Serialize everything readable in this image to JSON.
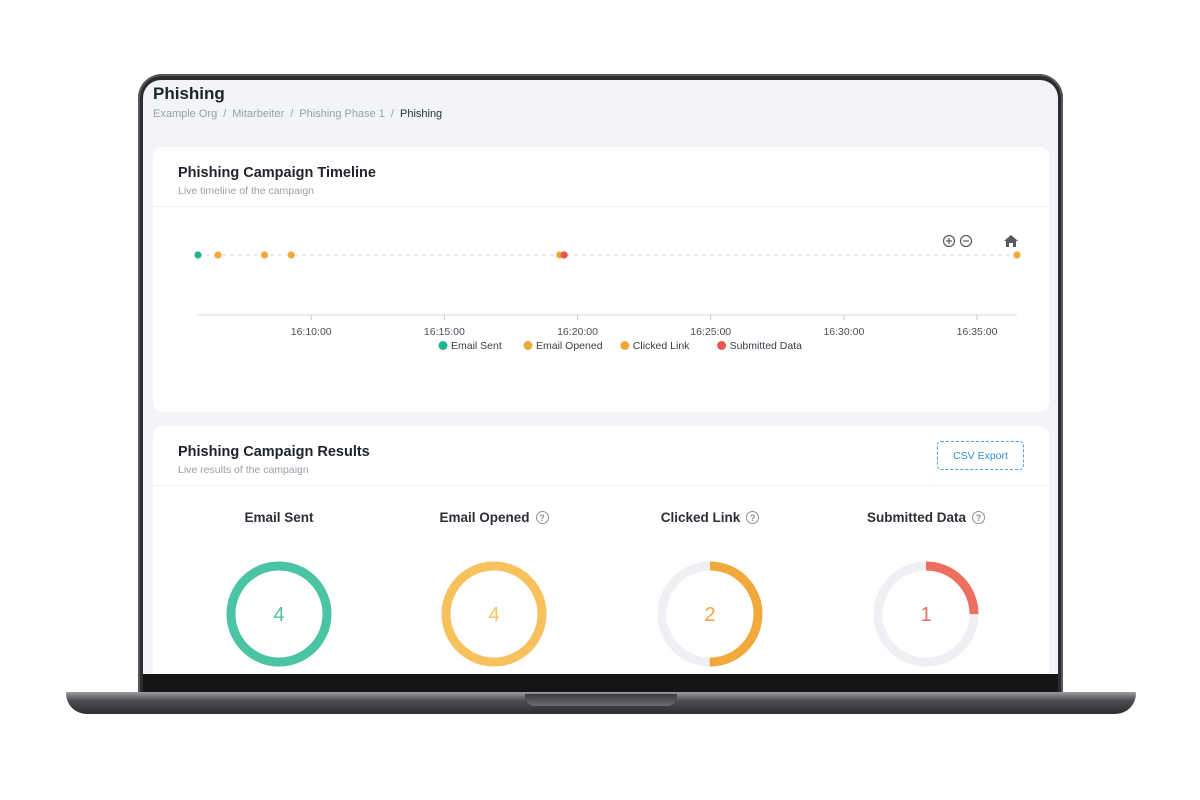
{
  "page": {
    "title": "Phishing",
    "breadcrumb": [
      "Example Org",
      "Mitarbeiter",
      "Phishing Phase 1",
      "Phishing"
    ]
  },
  "timeline": {
    "title": "Phishing Campaign Timeline",
    "subtitle": "Live timeline of the campaign",
    "controls": {
      "zoom_in_icon": "zoom-in-icon",
      "zoom_out_icon": "zoom-out-icon",
      "reset_icon": "home-icon"
    }
  },
  "chart_data": {
    "type": "scatter",
    "title": "",
    "xlabel": "",
    "ylabel": "",
    "x_ticks": [
      "16:10:00",
      "16:15:00",
      "16:20:00",
      "16:25:00",
      "16:30:00",
      "16:35:00"
    ],
    "xlim": [
      "16:05:45",
      "16:36:30"
    ],
    "grid": false,
    "legend_position": "bottom",
    "series": [
      {
        "name": "Email Sent",
        "color": "#1fb58f",
        "x": [
          "16:05:45"
        ]
      },
      {
        "name": "Email Opened",
        "color": "#f2a93b",
        "x": [
          "16:06:30",
          "16:08:15",
          "16:09:15",
          "16:36:30"
        ]
      },
      {
        "name": "Clicked Link",
        "color": "#f2a93b",
        "x": [
          "16:19:20"
        ]
      },
      {
        "name": "Submitted Data",
        "color": "#e8574d",
        "x": [
          "16:19:30"
        ]
      }
    ]
  },
  "results": {
    "title": "Phishing Campaign Results",
    "subtitle": "Live results of the campaign",
    "csv_label": "CSV Export",
    "total": 4,
    "metrics": [
      {
        "label": "Email Sent",
        "value": 4,
        "fraction": 1.0,
        "color": "#4ac4a3",
        "help": false
      },
      {
        "label": "Email Opened",
        "value": 4,
        "fraction": 1.0,
        "color": "#f7c25e",
        "help": true
      },
      {
        "label": "Clicked Link",
        "value": 2,
        "fraction": 0.5,
        "color": "#f2a93b",
        "help": true
      },
      {
        "label": "Submitted Data",
        "value": 1,
        "fraction": 0.25,
        "color": "#ee6e5f",
        "help": true
      }
    ]
  }
}
